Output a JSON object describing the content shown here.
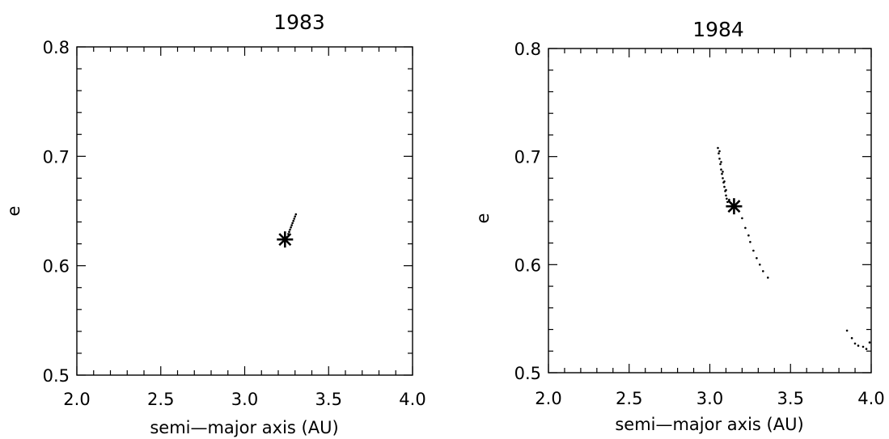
{
  "chart_data": [
    {
      "type": "scatter",
      "title": "1983",
      "xlabel": "semi—major axis (AU)",
      "ylabel": "e",
      "xlim": [
        2.0,
        4.0
      ],
      "ylim": [
        0.5,
        0.8
      ],
      "x_ticks": [
        "2.0",
        "2.5",
        "3.0",
        "3.5",
        "4.0"
      ],
      "y_ticks": [
        "0.5",
        "0.6",
        "0.7",
        "0.8"
      ],
      "marker": {
        "symbol": "asterisk",
        "x": 3.24,
        "y": 0.624
      },
      "points": [
        {
          "x": 3.25,
          "y": 0.626
        },
        {
          "x": 3.26,
          "y": 0.629
        },
        {
          "x": 3.265,
          "y": 0.631
        },
        {
          "x": 3.27,
          "y": 0.633
        },
        {
          "x": 3.275,
          "y": 0.635
        },
        {
          "x": 3.28,
          "y": 0.637
        },
        {
          "x": 3.285,
          "y": 0.639
        },
        {
          "x": 3.29,
          "y": 0.641
        },
        {
          "x": 3.295,
          "y": 0.643
        },
        {
          "x": 3.3,
          "y": 0.645
        },
        {
          "x": 3.305,
          "y": 0.647
        }
      ]
    },
    {
      "type": "scatter",
      "title": "1984",
      "xlabel": "semi—major axis (AU)",
      "ylabel": "e",
      "xlim": [
        2.0,
        4.0
      ],
      "ylim": [
        0.5,
        0.8
      ],
      "x_ticks": [
        "2.0",
        "2.5",
        "3.0",
        "3.5",
        "4.0"
      ],
      "y_ticks": [
        "0.5",
        "0.6",
        "0.7",
        "0.8"
      ],
      "marker": {
        "symbol": "asterisk",
        "x": 3.15,
        "y": 0.654
      },
      "points": [
        {
          "x": 3.05,
          "y": 0.708
        },
        {
          "x": 3.055,
          "y": 0.703
        },
        {
          "x": 3.06,
          "y": 0.698
        },
        {
          "x": 3.065,
          "y": 0.693
        },
        {
          "x": 3.07,
          "y": 0.688
        },
        {
          "x": 3.075,
          "y": 0.684
        },
        {
          "x": 3.08,
          "y": 0.68
        },
        {
          "x": 3.085,
          "y": 0.676
        },
        {
          "x": 3.09,
          "y": 0.672
        },
        {
          "x": 3.095,
          "y": 0.668
        },
        {
          "x": 3.1,
          "y": 0.664
        },
        {
          "x": 3.105,
          "y": 0.661
        },
        {
          "x": 3.11,
          "y": 0.658
        },
        {
          "x": 3.06,
          "y": 0.705
        },
        {
          "x": 3.07,
          "y": 0.695
        },
        {
          "x": 3.08,
          "y": 0.686
        },
        {
          "x": 3.09,
          "y": 0.677
        },
        {
          "x": 3.1,
          "y": 0.669
        },
        {
          "x": 3.12,
          "y": 0.66
        },
        {
          "x": 3.13,
          "y": 0.657
        },
        {
          "x": 3.2,
          "y": 0.643
        },
        {
          "x": 3.22,
          "y": 0.634
        },
        {
          "x": 3.24,
          "y": 0.627
        },
        {
          "x": 3.25,
          "y": 0.621
        },
        {
          "x": 3.27,
          "y": 0.613
        },
        {
          "x": 3.29,
          "y": 0.606
        },
        {
          "x": 3.31,
          "y": 0.6
        },
        {
          "x": 3.33,
          "y": 0.594
        },
        {
          "x": 3.36,
          "y": 0.588
        },
        {
          "x": 3.85,
          "y": 0.539
        },
        {
          "x": 3.88,
          "y": 0.532
        },
        {
          "x": 3.9,
          "y": 0.527
        },
        {
          "x": 3.92,
          "y": 0.525
        },
        {
          "x": 3.95,
          "y": 0.524
        },
        {
          "x": 3.97,
          "y": 0.522
        },
        {
          "x": 3.99,
          "y": 0.528
        }
      ]
    }
  ]
}
